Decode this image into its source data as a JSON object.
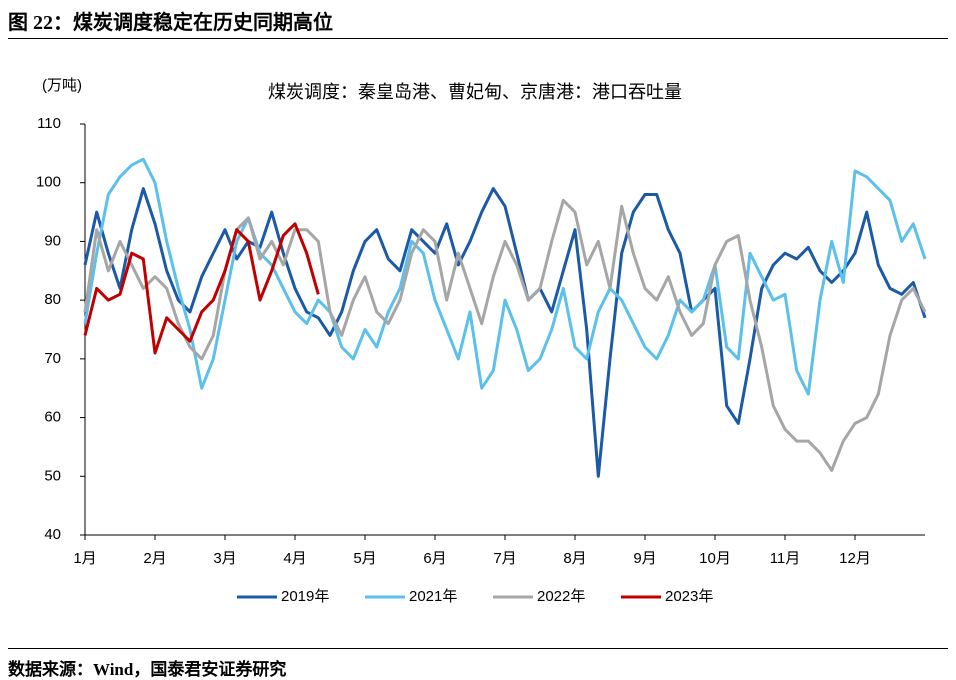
{
  "header": {
    "title": "图 22：煤炭调度稳定在历史同期高位"
  },
  "footer": {
    "source": "数据来源：Wind，国泰君安证券研究"
  },
  "chart_data": {
    "type": "line",
    "title": "煤炭调度：秦皇岛港、曹妃甸、京唐港：港口吞吐量",
    "y_label": "(万吨)",
    "categories": [
      "1月",
      null,
      null,
      null,
      null,
      null,
      "2月",
      null,
      null,
      null,
      null,
      null,
      "3月",
      null,
      null,
      null,
      null,
      null,
      "4月",
      null,
      null,
      null,
      null,
      null,
      "5月",
      null,
      null,
      null,
      null,
      null,
      "6月",
      null,
      null,
      null,
      null,
      null,
      "7月",
      null,
      null,
      null,
      null,
      null,
      "8月",
      null,
      null,
      null,
      null,
      null,
      "9月",
      null,
      null,
      null,
      null,
      null,
      "10月",
      null,
      null,
      null,
      null,
      null,
      "11月",
      null,
      null,
      null,
      null,
      null,
      "12月",
      null,
      null,
      null,
      null,
      null,
      null
    ],
    "ylim": [
      40,
      110
    ],
    "yticks": [
      40,
      50,
      60,
      70,
      80,
      90,
      100,
      110
    ],
    "legend": "bottom",
    "series": [
      {
        "name": "2019年",
        "color": "#1a5aa6",
        "values": [
          86,
          95,
          88,
          82,
          92,
          99,
          93,
          85,
          80,
          78,
          84,
          88,
          92,
          87,
          90,
          89,
          95,
          88,
          82,
          78,
          77,
          74,
          78,
          85,
          90,
          92,
          87,
          85,
          92,
          90,
          88,
          93,
          86,
          90,
          95,
          99,
          96,
          88,
          80,
          82,
          78,
          85,
          92,
          75,
          50,
          70,
          88,
          95,
          98,
          98,
          92,
          88,
          78,
          80,
          82,
          62,
          59,
          70,
          82,
          86,
          88,
          87,
          89,
          85,
          83,
          85,
          88,
          95,
          86,
          82,
          81,
          83,
          77
        ]
      },
      {
        "name": "2021年",
        "color": "#5bc0eb",
        "values": [
          76,
          88,
          98,
          101,
          103,
          104,
          100,
          90,
          82,
          75,
          65,
          70,
          80,
          90,
          94,
          88,
          86,
          82,
          78,
          76,
          80,
          78,
          72,
          70,
          75,
          72,
          78,
          82,
          90,
          88,
          80,
          75,
          70,
          78,
          65,
          68,
          80,
          75,
          68,
          70,
          75,
          82,
          72,
          70,
          78,
          82,
          80,
          76,
          72,
          70,
          74,
          80,
          78,
          80,
          86,
          72,
          70,
          88,
          84,
          80,
          81,
          68,
          64,
          80,
          90,
          83,
          102,
          101,
          99,
          97,
          90,
          93,
          87
        ]
      },
      {
        "name": "2022年",
        "color": "#a6a6a6",
        "values": [
          78,
          92,
          85,
          90,
          86,
          82,
          84,
          82,
          76,
          72,
          70,
          74,
          85,
          92,
          94,
          87,
          90,
          86,
          92,
          92,
          90,
          78,
          74,
          80,
          84,
          78,
          76,
          80,
          88,
          92,
          90,
          80,
          88,
          82,
          76,
          84,
          90,
          86,
          80,
          82,
          90,
          97,
          95,
          86,
          90,
          82,
          96,
          88,
          82,
          80,
          84,
          78,
          74,
          76,
          86,
          90,
          91,
          80,
          72,
          62,
          58,
          56,
          56,
          54,
          51,
          56,
          59,
          60,
          64,
          74,
          80,
          82,
          78
        ]
      },
      {
        "name": "2023年",
        "color": "#c00000",
        "values": [
          74,
          82,
          80,
          81,
          88,
          87,
          71,
          77,
          75,
          73,
          78,
          80,
          85,
          92,
          90,
          80,
          85,
          91,
          93,
          88,
          81,
          null,
          null,
          null,
          null,
          null,
          null,
          null,
          null,
          null,
          null,
          null,
          null,
          null,
          null,
          null,
          null,
          null,
          null,
          null,
          null,
          null,
          null,
          null,
          null,
          null,
          null,
          null,
          null,
          null,
          null,
          null,
          null,
          null,
          null,
          null,
          null,
          null,
          null,
          null,
          null,
          null,
          null,
          null,
          null,
          null,
          null,
          null,
          null,
          null,
          null,
          null,
          null
        ]
      }
    ]
  }
}
